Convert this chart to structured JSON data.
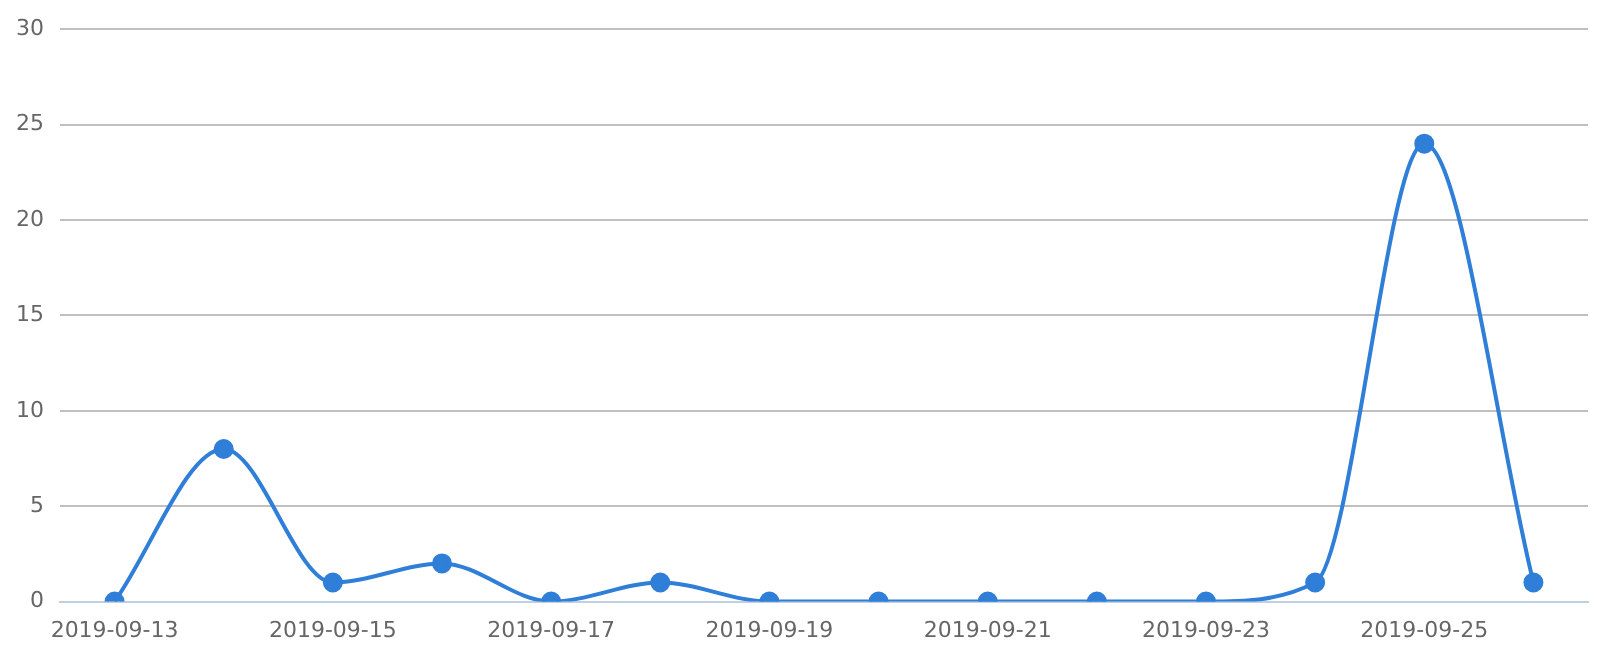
{
  "chart_data": {
    "type": "line",
    "categories": [
      "2019-09-13",
      null,
      "2019-09-15",
      null,
      "2019-09-17",
      null,
      "2019-09-19",
      null,
      "2019-09-21",
      null,
      "2019-09-23",
      null,
      "2019-09-25",
      null
    ],
    "series": [
      {
        "color": "#2f7ed8",
        "values": [
          0,
          8,
          1,
          2,
          0,
          1,
          0,
          0,
          0,
          0,
          0,
          1,
          24,
          1
        ]
      }
    ],
    "ylim": [
      0,
      30
    ],
    "yticks": [
      0,
      5,
      10,
      15,
      20,
      25,
      30
    ],
    "grid": "y",
    "legend": false,
    "marker": "circle",
    "line_style": "solid"
  }
}
